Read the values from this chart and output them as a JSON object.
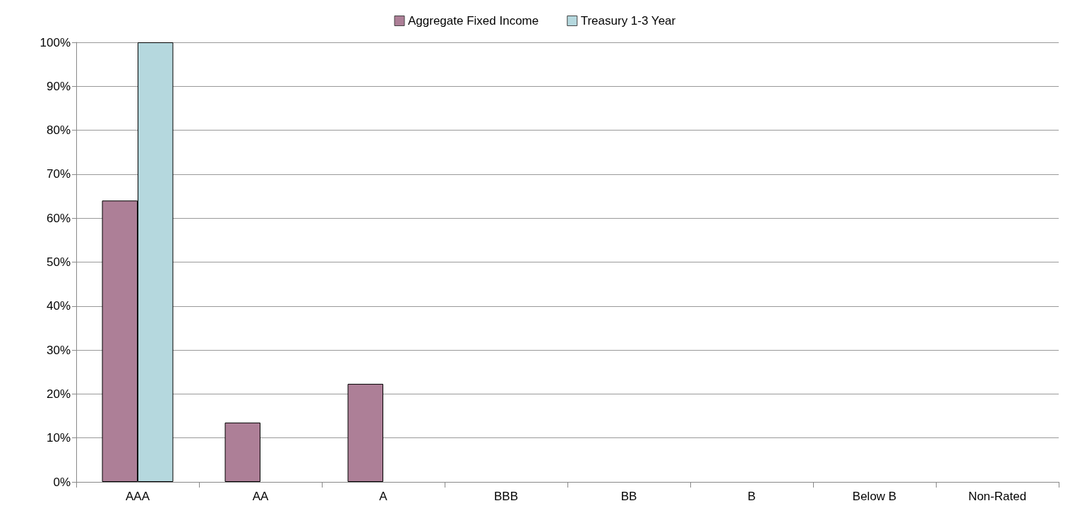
{
  "chart_data": {
    "type": "bar",
    "categories": [
      "AAA",
      "AA",
      "A",
      "BBB",
      "BB",
      "B",
      "Below B",
      "Non-Rated"
    ],
    "series": [
      {
        "name": "Aggregate Fixed Income",
        "color": "#ad7f97",
        "values": [
          64,
          13.5,
          22.3,
          0,
          0,
          0,
          0,
          0
        ]
      },
      {
        "name": "Treasury 1-3 Year",
        "color": "#b5d8de",
        "values": [
          100,
          0,
          0,
          0,
          0,
          0,
          0,
          0
        ]
      }
    ],
    "ylim": [
      0,
      100
    ],
    "yticks": [
      {
        "value": 0,
        "label": "0%"
      },
      {
        "value": 10,
        "label": "10%"
      },
      {
        "value": 20,
        "label": "20%"
      },
      {
        "value": 30,
        "label": "30%"
      },
      {
        "value": 40,
        "label": "40%"
      },
      {
        "value": 50,
        "label": "50%"
      },
      {
        "value": 60,
        "label": "60%"
      },
      {
        "value": 70,
        "label": "70%"
      },
      {
        "value": 80,
        "label": "80%"
      },
      {
        "value": 90,
        "label": "90%"
      },
      {
        "value": 100,
        "label": "100%"
      }
    ],
    "grid": "y",
    "legend": "top"
  }
}
